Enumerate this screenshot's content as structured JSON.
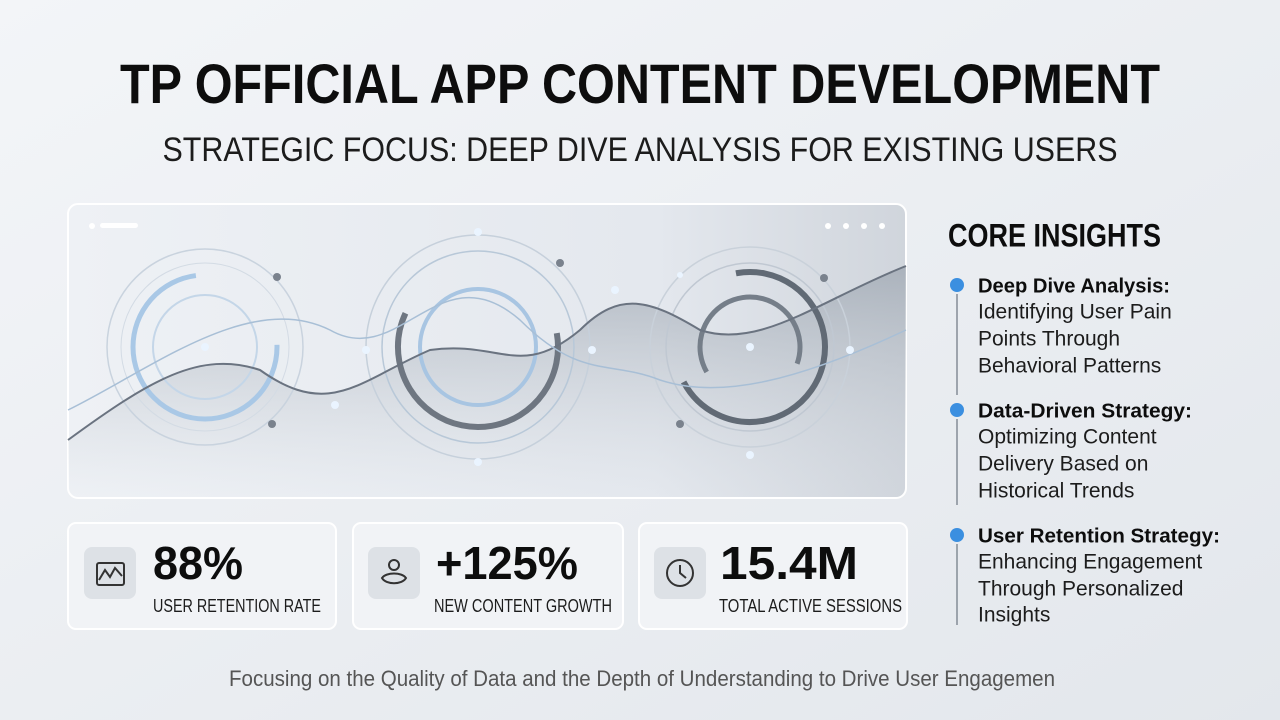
{
  "header": {
    "title": "TP OFFICIAL APP CONTENT DEVELOPMENT",
    "subtitle": "STRATEGIC FOCUS: DEEP DIVE ANALYSIS FOR EXISTING USERS"
  },
  "stats": [
    {
      "value": "88%",
      "label": "USER RETENTION RATE"
    },
    {
      "value": "+125%",
      "label": "NEW CONTENT GROWTH"
    },
    {
      "value": "15.4M",
      "label": "TOTAL ACTIVE SESSIONS"
    }
  ],
  "insights": {
    "heading": "CORE INSIGHTS",
    "items": [
      {
        "title": "Deep Dive Analysis:",
        "lines": [
          "Identifying User Pain",
          "Points Through",
          "Behavioral Patterns"
        ]
      },
      {
        "title": "Data-Driven Strategy:",
        "lines": [
          "Optimizing Content",
          "Delivery Based on",
          "Historical Trends"
        ]
      },
      {
        "title": "User Retention Strategy:",
        "lines": [
          "Enhancing Engagement",
          "Through Personalized",
          "Insights"
        ]
      }
    ]
  },
  "footer": "Focusing on the Quality of Data and the Depth of Understanding to Drive User Engagemen"
}
